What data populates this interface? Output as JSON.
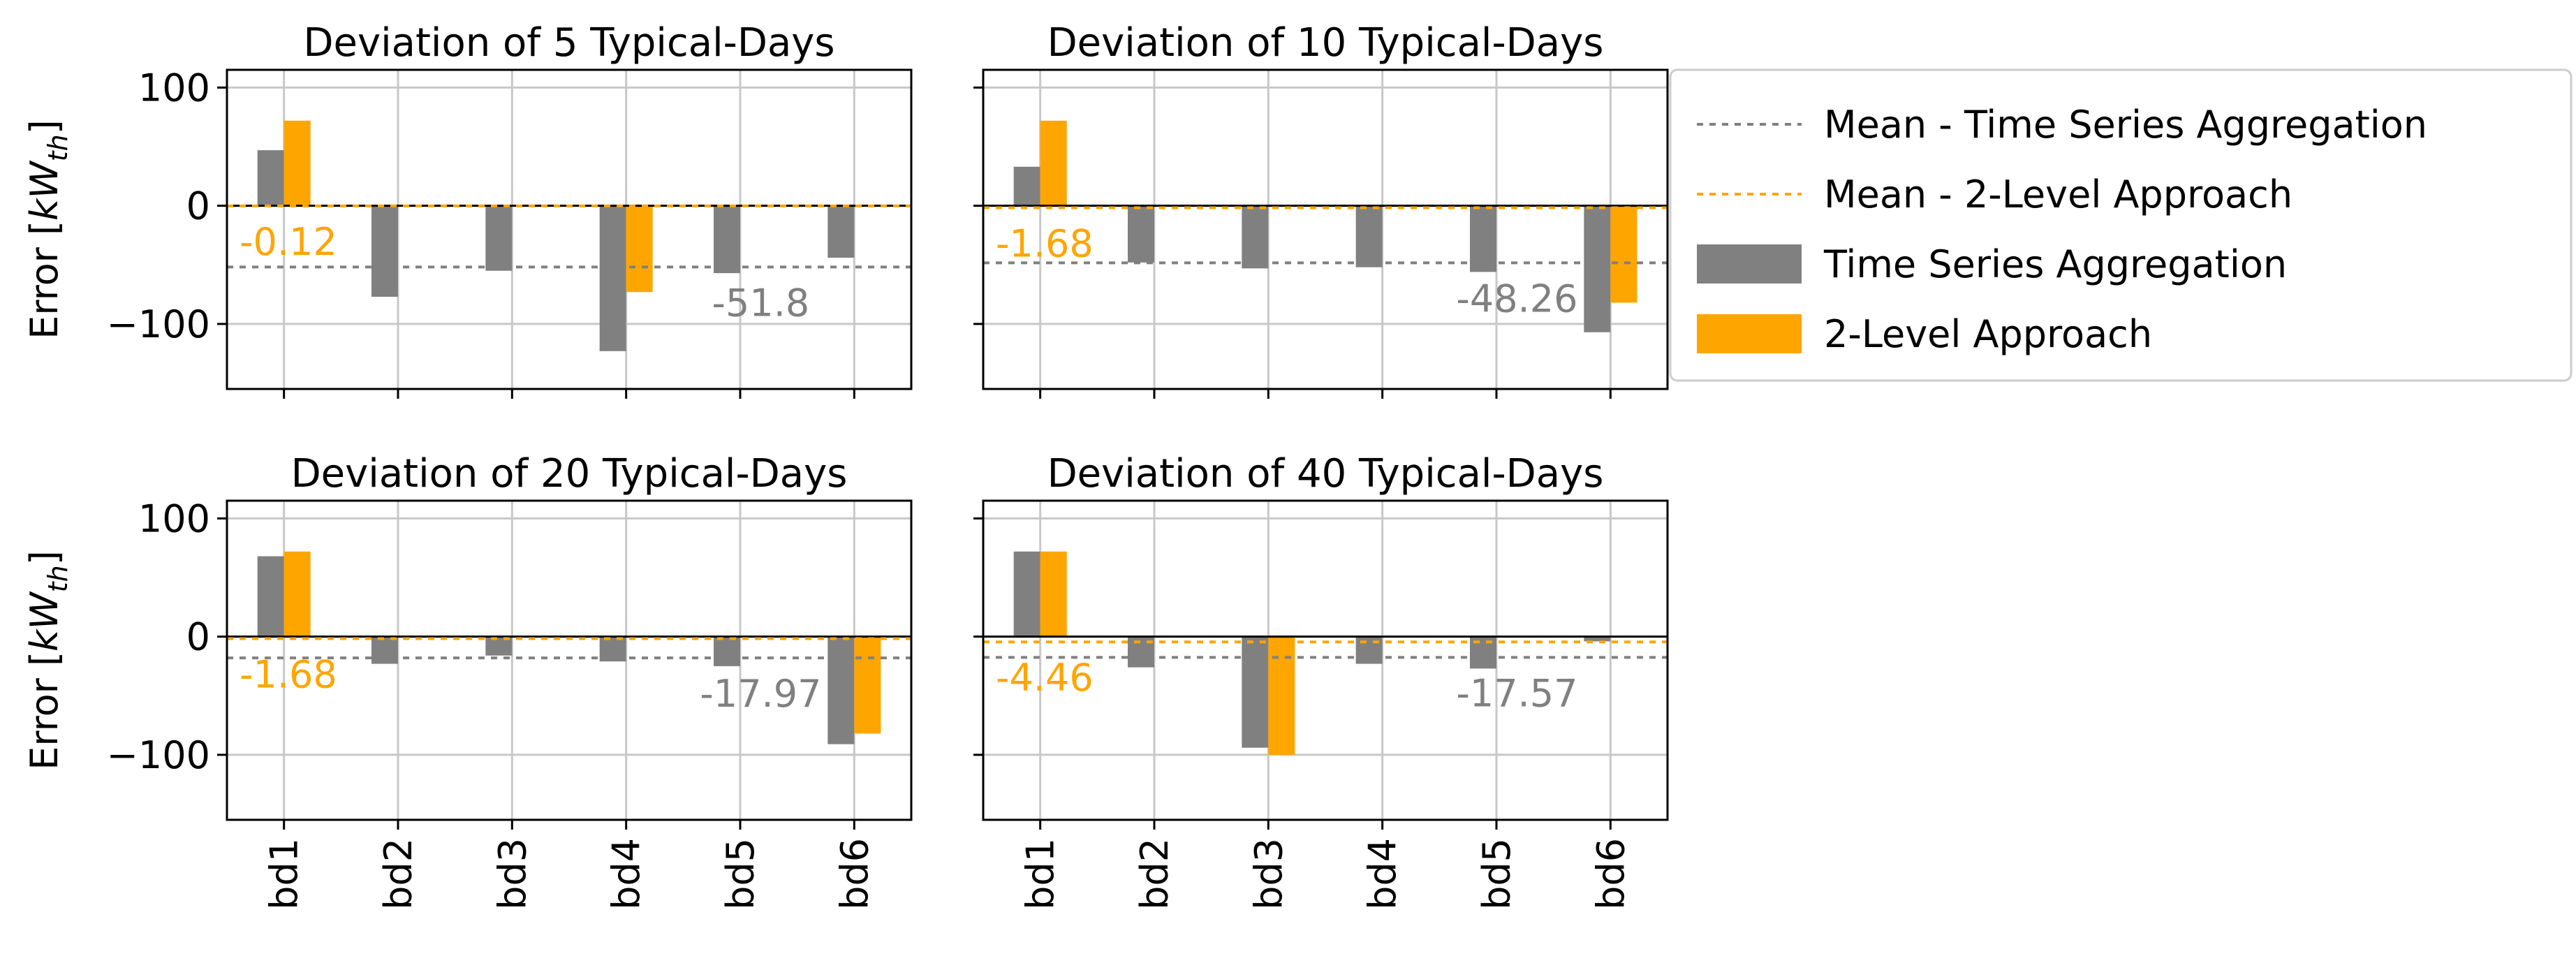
{
  "figure": {
    "ylabel_main": "Error [",
    "ylabel_kw": "kW",
    "ylabel_sub": "th",
    "ylabel_close": "]"
  },
  "colors": {
    "tsa": "#808080",
    "two_level": "#FFA500",
    "mean_tsa_text": "#808080",
    "mean_two_text": "#FFA500",
    "grid": "#c8c8c8",
    "axis": "#000000"
  },
  "legend": {
    "items": [
      {
        "label": "Mean - Time Series Aggregation",
        "kind": "dashed",
        "color_key": "tsa"
      },
      {
        "label": "Mean - 2-Level Approach",
        "kind": "dashed",
        "color_key": "two_level"
      },
      {
        "label": "Time Series Aggregation",
        "kind": "patch",
        "color_key": "tsa"
      },
      {
        "label": "2-Level Approach",
        "kind": "patch",
        "color_key": "two_level"
      }
    ]
  },
  "chart_data": [
    {
      "type": "bar",
      "title": "Deviation of 5 Typical-Days",
      "categories": [
        "bd1",
        "bd2",
        "bd3",
        "bd4",
        "bd5",
        "bd6"
      ],
      "ylim": [
        -155,
        115
      ],
      "yticks": [
        -100,
        0,
        100
      ],
      "ytick_labels": [
        "−100",
        "0",
        "100"
      ],
      "series": [
        {
          "name": "Time Series Aggregation",
          "values": [
            47,
            -77,
            -55,
            -123,
            -57,
            -44
          ]
        },
        {
          "name": "2-Level Approach",
          "values": [
            72,
            0,
            0,
            -73,
            0,
            0
          ]
        }
      ],
      "mean_tsa": -51.8,
      "mean_two": -0.12,
      "mean_tsa_label": "-51.8",
      "mean_two_label": "-0.12"
    },
    {
      "type": "bar",
      "title": "Deviation of 10 Typical-Days",
      "categories": [
        "bd1",
        "bd2",
        "bd3",
        "bd4",
        "bd5",
        "bd6"
      ],
      "ylim": [
        -155,
        115
      ],
      "yticks": [
        -100,
        0,
        100
      ],
      "ytick_labels": [
        "−100",
        "0",
        "100"
      ],
      "series": [
        {
          "name": "Time Series Aggregation",
          "values": [
            33,
            -48,
            -53,
            -52,
            -56,
            -107
          ]
        },
        {
          "name": "2-Level Approach",
          "values": [
            72,
            0,
            0,
            0,
            0,
            -82
          ]
        }
      ],
      "mean_tsa": -48.26,
      "mean_two": -1.68,
      "mean_tsa_label": "-48.26",
      "mean_two_label": "-1.68"
    },
    {
      "type": "bar",
      "title": "Deviation of 20 Typical-Days",
      "categories": [
        "bd1",
        "bd2",
        "bd3",
        "bd4",
        "bd5",
        "bd6"
      ],
      "ylim": [
        -155,
        115
      ],
      "yticks": [
        -100,
        0,
        100
      ],
      "ytick_labels": [
        "−100",
        "0",
        "100"
      ],
      "series": [
        {
          "name": "Time Series Aggregation",
          "values": [
            68,
            -23,
            -16,
            -21,
            -25,
            -91
          ]
        },
        {
          "name": "2-Level Approach",
          "values": [
            72,
            0,
            0,
            0,
            0,
            -82
          ]
        }
      ],
      "mean_tsa": -17.97,
      "mean_two": -1.68,
      "mean_tsa_label": "-17.97",
      "mean_two_label": "-1.68"
    },
    {
      "type": "bar",
      "title": "Deviation of 40 Typical-Days",
      "categories": [
        "bd1",
        "bd2",
        "bd3",
        "bd4",
        "bd5",
        "bd6"
      ],
      "ylim": [
        -155,
        115
      ],
      "yticks": [
        -100,
        0,
        100
      ],
      "ytick_labels": [
        "−100",
        "0",
        "100"
      ],
      "series": [
        {
          "name": "Time Series Aggregation",
          "values": [
            72,
            -26,
            -94,
            -23,
            -27,
            -4
          ]
        },
        {
          "name": "2-Level Approach",
          "values": [
            72,
            0,
            -100,
            0,
            0,
            0
          ]
        }
      ],
      "mean_tsa": -17.57,
      "mean_two": -4.46,
      "mean_tsa_label": "-17.57",
      "mean_two_label": "-4.46"
    }
  ]
}
